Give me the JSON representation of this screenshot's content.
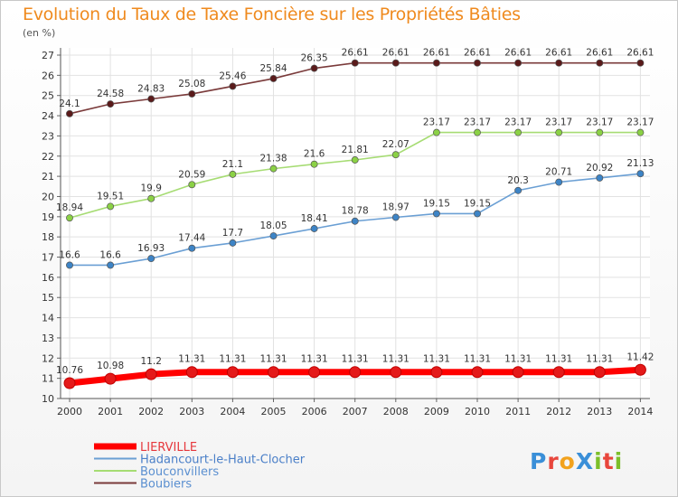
{
  "title": "Evolution du Taux de Taxe Foncière sur les Propriétés Bâties",
  "unit_label": "(en %)",
  "logo": {
    "text": "ProXiti",
    "letter_colors": [
      "#3a8fd8",
      "#e8463c",
      "#f2a21d",
      "#3a8fd8",
      "#7cbf2a",
      "#e8463c",
      "#7cbf2a"
    ]
  },
  "chart_data": {
    "type": "line",
    "x": [
      "2000",
      "2001",
      "2002",
      "2003",
      "2004",
      "2005",
      "2006",
      "2007",
      "2008",
      "2009",
      "2010",
      "2011",
      "2012",
      "2013",
      "2014"
    ],
    "ylim": [
      10,
      27
    ],
    "yticks": [
      10,
      11,
      12,
      13,
      14,
      15,
      16,
      17,
      18,
      19,
      20,
      21,
      22,
      23,
      24,
      25,
      26,
      27
    ],
    "grid": true,
    "legend_position": "bottom-left",
    "series": [
      {
        "name": "LIERVILLE",
        "color": "#ff0000",
        "marker_color": "#e41a1a",
        "legend_color": "#e6373c",
        "thick": true,
        "values": [
          10.76,
          10.98,
          11.2,
          11.31,
          11.31,
          11.31,
          11.31,
          11.31,
          11.31,
          11.31,
          11.31,
          11.31,
          11.31,
          11.31,
          11.42
        ],
        "labels": [
          "10.76",
          "10.98",
          "11.2",
          "11.31",
          "11.31",
          "11.31",
          "11.31",
          "11.31",
          "11.31",
          "11.31",
          "11.31",
          "11.31",
          "11.31",
          "11.31",
          "11.42"
        ]
      },
      {
        "name": "Hadancourt-le-Haut-Clocher",
        "color": "#6a9fd4",
        "marker_color": "#3d84c6",
        "legend_color": "#4a7fc8",
        "thick": false,
        "values": [
          16.6,
          16.6,
          16.93,
          17.44,
          17.7,
          18.05,
          18.41,
          18.78,
          18.97,
          19.15,
          19.15,
          20.3,
          20.71,
          20.92,
          21.13
        ],
        "labels": [
          "16.6",
          "16.6",
          "16.93",
          "17.44",
          "17.7",
          "18.05",
          "18.41",
          "18.78",
          "18.97",
          "19.15",
          "19.15",
          "20.3",
          "20.71",
          "20.92",
          "21.13"
        ]
      },
      {
        "name": "Bouconvillers",
        "color": "#a6dc73",
        "marker_color": "#8bd145",
        "legend_color": "#5a8fd0",
        "thick": false,
        "values": [
          18.94,
          19.51,
          19.9,
          20.59,
          21.1,
          21.38,
          21.6,
          21.81,
          22.07,
          23.17,
          23.17,
          23.17,
          23.17,
          23.17,
          23.17
        ],
        "labels": [
          "18.94",
          "19.51",
          "19.9",
          "20.59",
          "21.1",
          "21.38",
          "21.6",
          "21.81",
          "22.07",
          "23.17",
          "23.17",
          "23.17",
          "23.17",
          "23.17",
          "23.17"
        ]
      },
      {
        "name": "Boubiers",
        "color": "#7a3a3a",
        "marker_color": "#5a1a1a",
        "legend_color": "#5a8fd0",
        "thick": false,
        "values": [
          24.1,
          24.58,
          24.83,
          25.08,
          25.46,
          25.84,
          26.35,
          26.61,
          26.61,
          26.61,
          26.61,
          26.61,
          26.61,
          26.61,
          26.61
        ],
        "labels": [
          "24.1",
          "24.58",
          "24.83",
          "25.08",
          "25.46",
          "25.84",
          "26.35",
          "26.61",
          "26.61",
          "26.61",
          "26.61",
          "26.61",
          "26.61",
          "26.61",
          "26.61"
        ]
      }
    ]
  }
}
